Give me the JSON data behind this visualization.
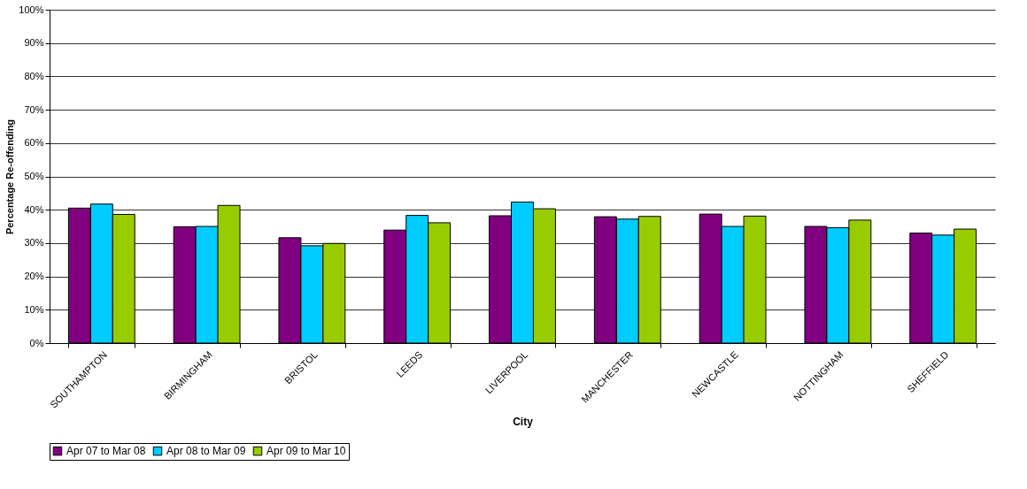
{
  "chart_data": {
    "type": "bar",
    "xlabel": "City",
    "ylabel": "Percentage Re-offending",
    "categories": [
      "SOUTHAMPTON",
      "BIRMINGHAM",
      "BRISTOL",
      "LEEDS",
      "LIVERPOOL",
      "MANCHESTER",
      "NEWCASTLE",
      "NOTTINGHAM",
      "SHEFFIELD"
    ],
    "series": [
      {
        "name": "Apr 07 to Mar 08",
        "color": "#800080",
        "values": [
          40.5,
          34.9,
          31.6,
          33.9,
          38.2,
          37.9,
          38.7,
          35.0,
          33.0
        ]
      },
      {
        "name": "Apr 08 to Mar 09",
        "color": "#00ccff",
        "values": [
          41.7,
          35.0,
          29.2,
          38.3,
          42.3,
          37.2,
          35.0,
          34.6,
          32.4
        ]
      },
      {
        "name": "Apr 09 to Mar 10",
        "color": "#99cc00",
        "values": [
          38.6,
          41.3,
          29.9,
          36.1,
          40.3,
          38.0,
          38.1,
          36.9,
          34.2
        ]
      }
    ],
    "ylim": [
      0,
      100
    ],
    "yticks": [
      {
        "value": 0,
        "label": "0%"
      },
      {
        "value": 10,
        "label": "10%"
      },
      {
        "value": 20,
        "label": "20%"
      },
      {
        "value": 30,
        "label": "30%"
      },
      {
        "value": 40,
        "label": "40%"
      },
      {
        "value": 50,
        "label": "50%"
      },
      {
        "value": 60,
        "label": "60%"
      },
      {
        "value": 70,
        "label": "70%"
      },
      {
        "value": 80,
        "label": "80%"
      },
      {
        "value": 90,
        "label": "90%"
      },
      {
        "value": 100,
        "label": "100%"
      }
    ],
    "grid": "y",
    "legend": "bottom"
  }
}
